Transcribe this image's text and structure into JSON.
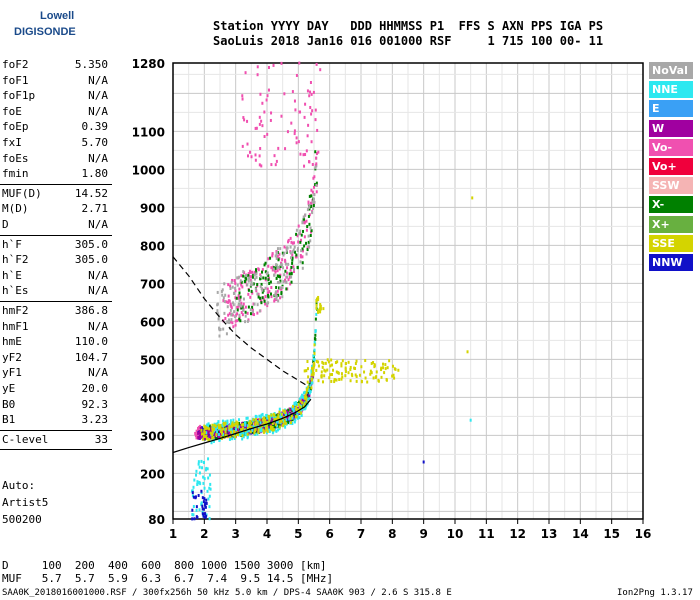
{
  "logo": {
    "line1": "Lowell",
    "line2": "DIGISONDE"
  },
  "header": {
    "line1": "Station YYYY DAY   DDD HHMMSS P1  FFS S AXN PPS IGA PS",
    "line2": "SaoLuis 2018 Jan16 016 001000 RSF     1 715 100 00- 11"
  },
  "params": [
    {
      "name": "foF2",
      "value": "5.350"
    },
    {
      "name": "foF1",
      "value": "N/A"
    },
    {
      "name": "foF1p",
      "value": "N/A"
    },
    {
      "name": "foE",
      "value": "N/A"
    },
    {
      "name": "foEp",
      "value": "0.39"
    },
    {
      "name": "fxI",
      "value": "5.70"
    },
    {
      "name": "foEs",
      "value": "N/A"
    },
    {
      "name": "fmin",
      "value": "1.80"
    },
    {
      "name": "MUF(D)",
      "value": "14.52"
    },
    {
      "name": "M(D)",
      "value": "2.71"
    },
    {
      "name": "D",
      "value": "N/A"
    },
    {
      "name": "h`F",
      "value": "305.0"
    },
    {
      "name": "h`F2",
      "value": "305.0"
    },
    {
      "name": "h`E",
      "value": "N/A"
    },
    {
      "name": "h`Es",
      "value": "N/A"
    },
    {
      "name": "hmF2",
      "value": "386.8"
    },
    {
      "name": "hmF1",
      "value": "N/A"
    },
    {
      "name": "hmE",
      "value": "110.0"
    },
    {
      "name": "yF2",
      "value": "104.7"
    },
    {
      "name": "yF1",
      "value": "N/A"
    },
    {
      "name": "yE",
      "value": "20.0"
    },
    {
      "name": "B0",
      "value": "92.3"
    },
    {
      "name": "B1",
      "value": "3.23"
    },
    {
      "name": "C-level",
      "value": "33"
    }
  ],
  "auto": {
    "line1": "Auto:",
    "line2": "Artist5",
    "line3": "500200"
  },
  "legend": [
    {
      "label": "NoVal",
      "color": "#a8a8a8"
    },
    {
      "label": "NNE",
      "color": "#2ee8f0"
    },
    {
      "label": "E",
      "color": "#3aa0f5"
    },
    {
      "label": "W",
      "color": "#a000a0"
    },
    {
      "label": "Vo-",
      "color": "#f050b0"
    },
    {
      "label": "Vo+",
      "color": "#f0003c"
    },
    {
      "label": "SSW",
      "color": "#f5b4b4"
    },
    {
      "label": "X-",
      "color": "#008000"
    },
    {
      "label": "X+",
      "color": "#68b040"
    },
    {
      "label": "SSE",
      "color": "#d4d400"
    },
    {
      "label": "NNW",
      "color": "#1010c8"
    }
  ],
  "footer": {
    "dist_line": "D     100  200  400  600  800 1000 1500 3000 [km]",
    "muf_line": "MUF   5.7  5.7  5.9  6.3  6.7  7.4  9.5 14.5 [MHz]",
    "file_line": "SAA0K_2018016001000.RSF / 300fx256h 50 kHz 5.0 km / DPS-4 SAA0K 903 / 2.6 S 315.8 E",
    "version": "Ion2Png 1.3.17"
  },
  "chart_data": {
    "type": "scatter",
    "xlim": [
      1,
      16
    ],
    "ylim": [
      80,
      1280
    ],
    "x_ticks": [
      "1",
      "2",
      "3",
      "4",
      "5",
      "6",
      "7",
      "8",
      "9",
      "10",
      "11",
      "12",
      "13",
      "14",
      "15",
      "16"
    ],
    "y_ticks": [
      "80",
      "200",
      "300",
      "400",
      "500",
      "600",
      "700",
      "800",
      "900",
      "1000",
      "1100",
      "1280"
    ],
    "curves": [
      {
        "style": "solid",
        "x": [
          1.0,
          1.5,
          2.0,
          2.5,
          3.0,
          3.5,
          4.0,
          4.5,
          4.9,
          5.2,
          5.4
        ],
        "y": [
          255,
          268,
          280,
          292,
          305,
          318,
          330,
          345,
          360,
          375,
          395
        ]
      },
      {
        "style": "dashed",
        "x": [
          1.0,
          1.5,
          2.0,
          2.5,
          3.0,
          3.5,
          4.0,
          4.5,
          5.0,
          5.3
        ],
        "y": [
          770,
          720,
          660,
          610,
          565,
          530,
          500,
          470,
          445,
          430
        ]
      }
    ],
    "clusters": [
      {
        "color": "#f050b0",
        "x0": 1.7,
        "x1": 5.5,
        "y0": 300,
        "y1": 400,
        "n": 380,
        "curve": "o"
      },
      {
        "color": "#1010c8",
        "x0": 1.8,
        "x1": 5.5,
        "y0": 320,
        "y1": 410,
        "n": 260,
        "curve": "o"
      },
      {
        "color": "#008000",
        "x0": 2.0,
        "x1": 5.6,
        "y0": 320,
        "y1": 420,
        "n": 240,
        "curve": "o"
      },
      {
        "color": "#a000a0",
        "x0": 1.8,
        "x1": 5.5,
        "y0": 310,
        "y1": 400,
        "n": 200,
        "curve": "o"
      },
      {
        "color": "#2ee8f0",
        "x0": 2.0,
        "x1": 5.6,
        "y0": 360,
        "y1": 520,
        "n": 260,
        "curve": "o"
      },
      {
        "color": "#d4d400",
        "x0": 1.9,
        "x1": 5.8,
        "y0": 320,
        "y1": 440,
        "n": 220,
        "curve": "o"
      },
      {
        "color": "#f050b0",
        "x0": 2.6,
        "x1": 5.6,
        "y0": 620,
        "y1": 1000,
        "n": 200,
        "curve": "x"
      },
      {
        "color": "#008000",
        "x0": 3.0,
        "x1": 5.6,
        "y0": 650,
        "y1": 1000,
        "n": 120,
        "curve": "x"
      },
      {
        "color": "#a8a8a8",
        "x0": 2.4,
        "x1": 5.6,
        "y0": 600,
        "y1": 1000,
        "n": 160,
        "curve": "x"
      },
      {
        "color": "#f050b0",
        "x0": 3.2,
        "x1": 5.7,
        "y0": 1000,
        "y1": 1280,
        "n": 90,
        "curve": "x2"
      },
      {
        "color": "#d4d400",
        "x0": 5.2,
        "x1": 8.2,
        "y0": 440,
        "y1": 500,
        "n": 120,
        "curve": "flat"
      },
      {
        "color": "#2ee8f0",
        "x0": 1.6,
        "x1": 2.2,
        "y0": 80,
        "y1": 240,
        "n": 50,
        "curve": "flat"
      },
      {
        "color": "#1010c8",
        "x0": 1.6,
        "x1": 2.1,
        "y0": 80,
        "y1": 160,
        "n": 30,
        "curve": "flat"
      }
    ]
  }
}
